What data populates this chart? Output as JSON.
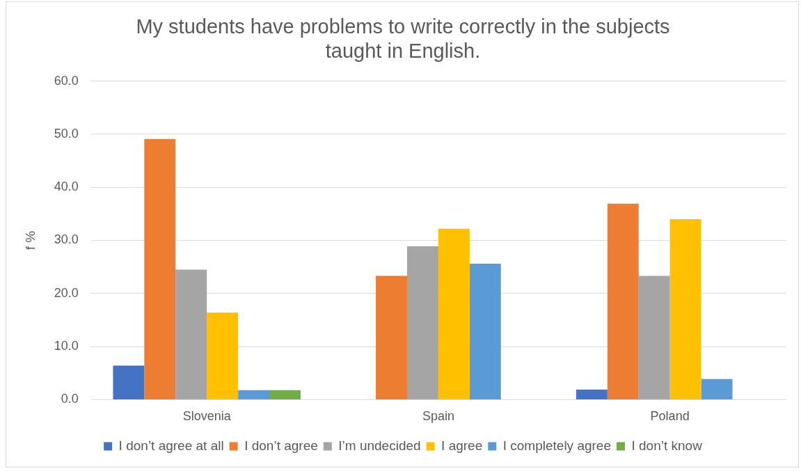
{
  "chart_data": {
    "type": "bar",
    "title": "My students have problems to write correctly in the subjects taught in English.",
    "ylabel": "f %",
    "categories": [
      "Slovenia",
      "Spain",
      "Poland"
    ],
    "series": [
      {
        "name": "I don’t agree at all",
        "color": "#4472c4",
        "values": [
          6.4,
          0,
          1.9
        ]
      },
      {
        "name": "I don’t agree",
        "color": "#ed7d31",
        "values": [
          49.1,
          23.3,
          36.9
        ]
      },
      {
        "name": "I’m undecided",
        "color": "#a5a5a5",
        "values": [
          24.5,
          28.9,
          23.3
        ]
      },
      {
        "name": "I agree",
        "color": "#ffc000",
        "values": [
          16.4,
          32.2,
          34.0
        ]
      },
      {
        "name": "I completely agree",
        "color": "#5b9bd5",
        "values": [
          1.8,
          25.6,
          3.9
        ]
      },
      {
        "name": "I don’t know",
        "color": "#70ad47",
        "values": [
          1.8,
          0,
          0
        ]
      }
    ],
    "ylim": [
      0,
      60
    ],
    "yticks": [
      {
        "value": 0,
        "label": "0.0"
      },
      {
        "value": 10,
        "label": "10.0"
      },
      {
        "value": 20,
        "label": "20.0"
      },
      {
        "value": 30,
        "label": "30.0"
      },
      {
        "value": 40,
        "label": "40.0"
      },
      {
        "value": 50,
        "label": "50.0"
      },
      {
        "value": 60,
        "label": "60.0"
      }
    ],
    "grid": "y",
    "legend": "bottom"
  }
}
